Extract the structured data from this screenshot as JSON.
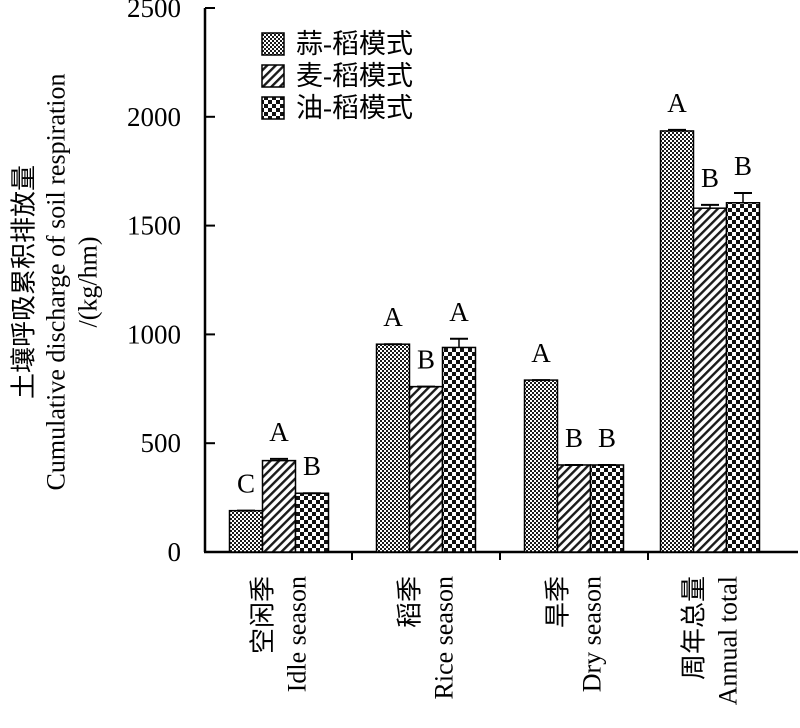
{
  "chart_data": {
    "type": "bar",
    "ylabel_zh": "土壤呼吸累积排放量",
    "ylabel_en": "Cumulative discharge of soil respiration",
    "ylabel_unit": "/(kg/hm)",
    "ylim": [
      0,
      2500
    ],
    "yticks": [
      0,
      500,
      1000,
      1500,
      2000,
      2500
    ],
    "grid": false,
    "legend_position": "top-left",
    "categories": [
      {
        "zh": "空闲季",
        "en": "Idle season"
      },
      {
        "zh": "稻季",
        "en": "Rice season"
      },
      {
        "zh": "旱季",
        "en": "Dry season"
      },
      {
        "zh": "周年总量",
        "en": "Annual total"
      }
    ],
    "series": [
      {
        "name": "蒜-稻模式",
        "pattern": "dense-check",
        "values": [
          190,
          955,
          790,
          1935
        ],
        "errors": [
          0,
          0,
          0,
          5
        ],
        "significance": [
          "C",
          "A",
          "A",
          "A"
        ]
      },
      {
        "name": "麦-稻模式",
        "pattern": "diagonal-hatch",
        "values": [
          420,
          760,
          400,
          1580
        ],
        "errors": [
          8,
          0,
          0,
          15
        ],
        "significance": [
          "A",
          "B",
          "B",
          "B"
        ]
      },
      {
        "name": "油-稻模式",
        "pattern": "large-check",
        "values": [
          270,
          940,
          400,
          1605
        ],
        "errors": [
          0,
          40,
          0,
          45
        ],
        "significance": [
          "B",
          "A",
          "B",
          "B"
        ]
      }
    ]
  }
}
